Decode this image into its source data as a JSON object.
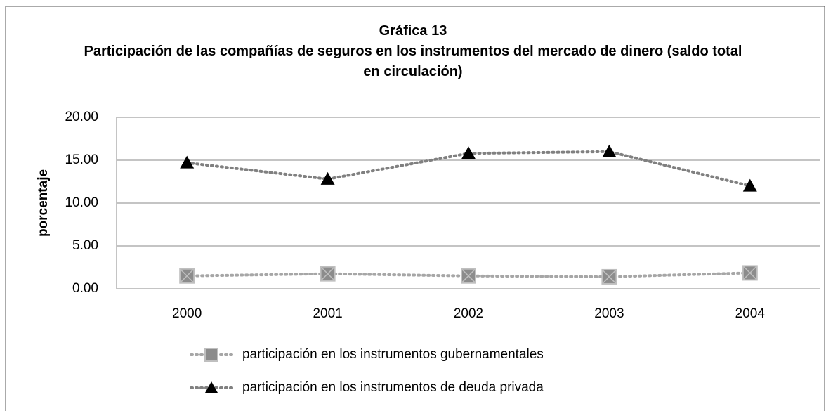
{
  "chart_data": {
    "type": "line",
    "title": "Gráfica 13",
    "subtitle": "Participación de las compañías de seguros en los instrumentos del mercado de dinero (saldo total en circulación)",
    "y_label": "porcentaje",
    "categories": [
      "2000",
      "2001",
      "2002",
      "2003",
      "2004"
    ],
    "series": [
      {
        "name": "participación en los instrumentos gubernamentales",
        "color": "#a6a6a6",
        "marker": "square-x",
        "values": [
          1.5,
          1.75,
          1.5,
          1.4,
          1.85
        ]
      },
      {
        "name": "participación en los instrumentos de deuda privada",
        "color": "#000000",
        "marker": "triangle",
        "values": [
          14.7,
          12.8,
          15.8,
          16.0,
          12.0
        ]
      }
    ],
    "ylim": [
      0,
      20
    ],
    "yticks": [
      {
        "value": 0,
        "label": "0.00"
      },
      {
        "value": 5,
        "label": "5.00"
      },
      {
        "value": 10,
        "label": "10.00"
      },
      {
        "value": 15,
        "label": "15.00"
      },
      {
        "value": 20,
        "label": "20.00"
      }
    ],
    "grid": true,
    "legend": "bottom"
  }
}
